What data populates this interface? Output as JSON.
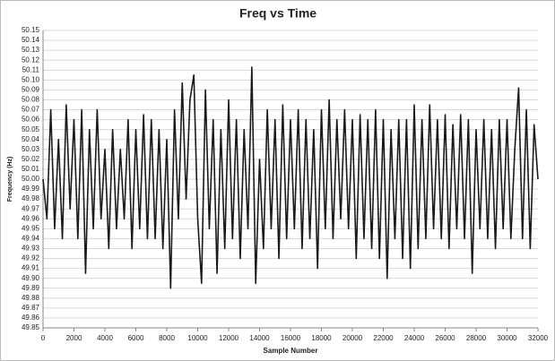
{
  "chart_data": {
    "type": "line",
    "title": "Freq vs Time",
    "xlabel": "Sample Number",
    "ylabel": "Frequency (Hz)",
    "x": [
      0,
      250,
      500,
      750,
      1000,
      1250,
      1500,
      1750,
      2000,
      2250,
      2500,
      2750,
      3000,
      3250,
      3500,
      3750,
      4000,
      4250,
      4500,
      4750,
      5000,
      5250,
      5500,
      5750,
      6000,
      6250,
      6500,
      6750,
      7000,
      7250,
      7500,
      7750,
      8000,
      8250,
      8500,
      8750,
      9000,
      9250,
      9500,
      9750,
      10000,
      10250,
      10500,
      10750,
      11000,
      11250,
      11500,
      11750,
      12000,
      12250,
      12500,
      12750,
      13000,
      13250,
      13500,
      13750,
      14000,
      14250,
      14500,
      14750,
      15000,
      15250,
      15500,
      15750,
      16000,
      16250,
      16500,
      16750,
      17000,
      17250,
      17500,
      17750,
      18000,
      18250,
      18500,
      18750,
      19000,
      19250,
      19500,
      19750,
      20000,
      20250,
      20500,
      20750,
      21000,
      21250,
      21500,
      21750,
      22000,
      22250,
      22500,
      22750,
      23000,
      23250,
      23500,
      23750,
      24000,
      24250,
      24500,
      24750,
      25000,
      25250,
      25500,
      25750,
      26000,
      26250,
      26500,
      26750,
      27000,
      27250,
      27500,
      27750,
      28000,
      28250,
      28500,
      28750,
      29000,
      29250,
      29500,
      29750,
      30000,
      30250,
      30500,
      30750,
      31000,
      31250,
      31500,
      31750,
      32000
    ],
    "series": [
      {
        "name": "Frequency",
        "color": "#1a1a1a",
        "values": [
          50.0,
          49.96,
          50.07,
          49.95,
          50.04,
          49.94,
          50.075,
          49.97,
          50.06,
          49.94,
          50.07,
          49.905,
          50.05,
          49.95,
          50.07,
          49.96,
          50.03,
          49.93,
          50.05,
          49.95,
          50.03,
          49.96,
          50.06,
          49.93,
          50.05,
          49.95,
          50.065,
          49.94,
          50.06,
          49.94,
          50.05,
          49.93,
          50.04,
          49.89,
          50.07,
          49.96,
          50.097,
          49.98,
          50.08,
          50.105,
          49.96,
          49.895,
          50.09,
          49.95,
          50.06,
          49.905,
          50.05,
          49.93,
          50.08,
          49.94,
          50.06,
          49.92,
          50.05,
          49.95,
          50.113,
          49.895,
          50.02,
          49.93,
          50.07,
          49.95,
          50.06,
          49.92,
          50.075,
          49.94,
          50.06,
          49.95,
          50.07,
          49.93,
          50.06,
          49.94,
          50.05,
          49.91,
          50.07,
          49.95,
          50.08,
          49.94,
          50.06,
          49.96,
          50.07,
          49.95,
          50.06,
          49.92,
          50.065,
          49.94,
          50.06,
          49.93,
          50.07,
          49.92,
          50.06,
          49.9,
          50.05,
          49.94,
          50.06,
          49.92,
          50.06,
          49.91,
          50.075,
          49.93,
          50.06,
          49.94,
          50.075,
          49.95,
          50.06,
          49.94,
          50.065,
          49.93,
          50.055,
          49.95,
          50.065,
          49.94,
          50.06,
          49.905,
          50.05,
          49.95,
          50.06,
          49.94,
          50.05,
          49.93,
          50.06,
          49.95,
          50.06,
          49.94,
          50.03,
          50.092,
          49.94,
          50.07,
          49.93,
          50.055,
          50.0
        ]
      }
    ],
    "xlim": [
      0,
      32000
    ],
    "xticks": [
      0,
      2000,
      4000,
      6000,
      8000,
      10000,
      12000,
      14000,
      16000,
      18000,
      20000,
      22000,
      24000,
      26000,
      28000,
      30000,
      32000
    ],
    "ylim": [
      49.85,
      50.15
    ],
    "yticks": [
      49.85,
      {
        "value": 49.9,
        "label": "49.90"
      },
      49.86,
      49.87,
      49.88,
      49.89,
      49.91,
      49.92,
      49.93,
      49.94,
      49.95,
      49.96,
      49.97,
      49.98,
      49.99,
      {
        "value": 50,
        "label": "50.00"
      },
      50.01,
      50.02,
      50.03,
      50.04,
      50.05,
      50.06,
      50.07,
      50.08,
      50.09,
      {
        "value": 50.1,
        "label": "50.10"
      },
      50.11,
      50.12,
      50.13,
      50.14,
      50.15
    ],
    "grid": true
  }
}
